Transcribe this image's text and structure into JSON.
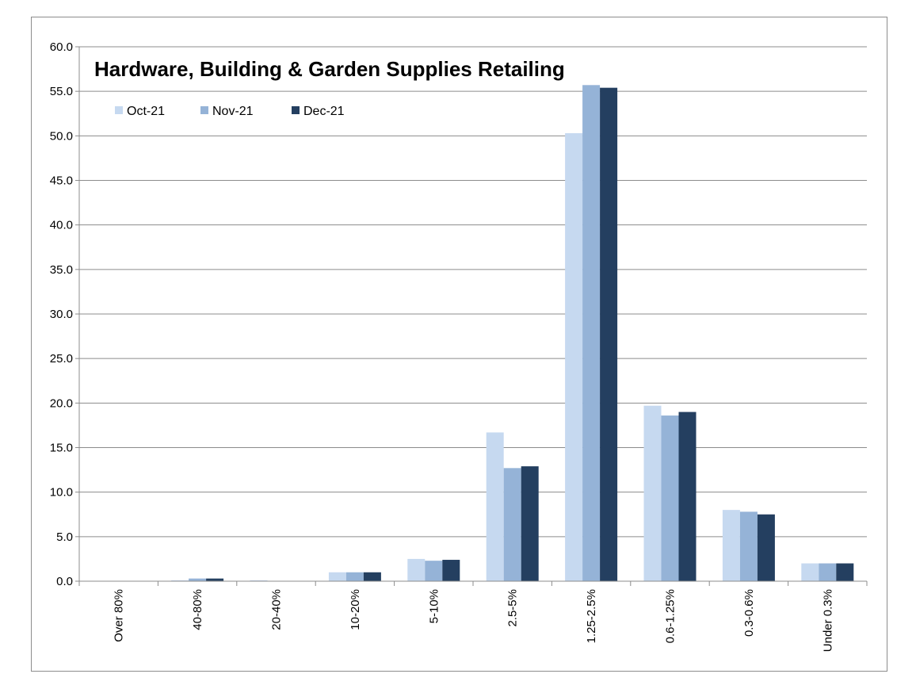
{
  "chart_data": {
    "type": "bar",
    "title": "Hardware, Building & Garden Supplies Retailing",
    "xlabel": "",
    "ylabel": "",
    "ylim": [
      0,
      60
    ],
    "y_ticks": [
      "0.0",
      "5.0",
      "10.0",
      "15.0",
      "20.0",
      "25.0",
      "30.0",
      "35.0",
      "40.0",
      "45.0",
      "50.0",
      "55.0",
      "60.0"
    ],
    "grid": true,
    "legend_position": "top-left",
    "categories": [
      "Over 80%",
      "40-80%",
      "20-40%",
      "10-20%",
      "5-10%",
      "2.5-5%",
      "1.25-2.5%",
      "0.6-1.25%",
      "0.3-0.6%",
      "Under 0.3%"
    ],
    "series": [
      {
        "name": "Oct-21",
        "color": "#c6d9f0",
        "values": [
          0.0,
          0.1,
          0.1,
          1.0,
          2.5,
          16.7,
          50.3,
          19.7,
          8.0,
          2.0
        ]
      },
      {
        "name": "Nov-21",
        "color": "#95b3d7",
        "values": [
          0.0,
          0.3,
          0.0,
          1.0,
          2.3,
          12.7,
          55.7,
          18.6,
          7.8,
          2.0
        ]
      },
      {
        "name": "Dec-21",
        "color": "#243f60",
        "values": [
          0.0,
          0.3,
          0.0,
          1.0,
          2.4,
          12.9,
          55.4,
          19.0,
          7.5,
          2.0
        ]
      }
    ]
  }
}
